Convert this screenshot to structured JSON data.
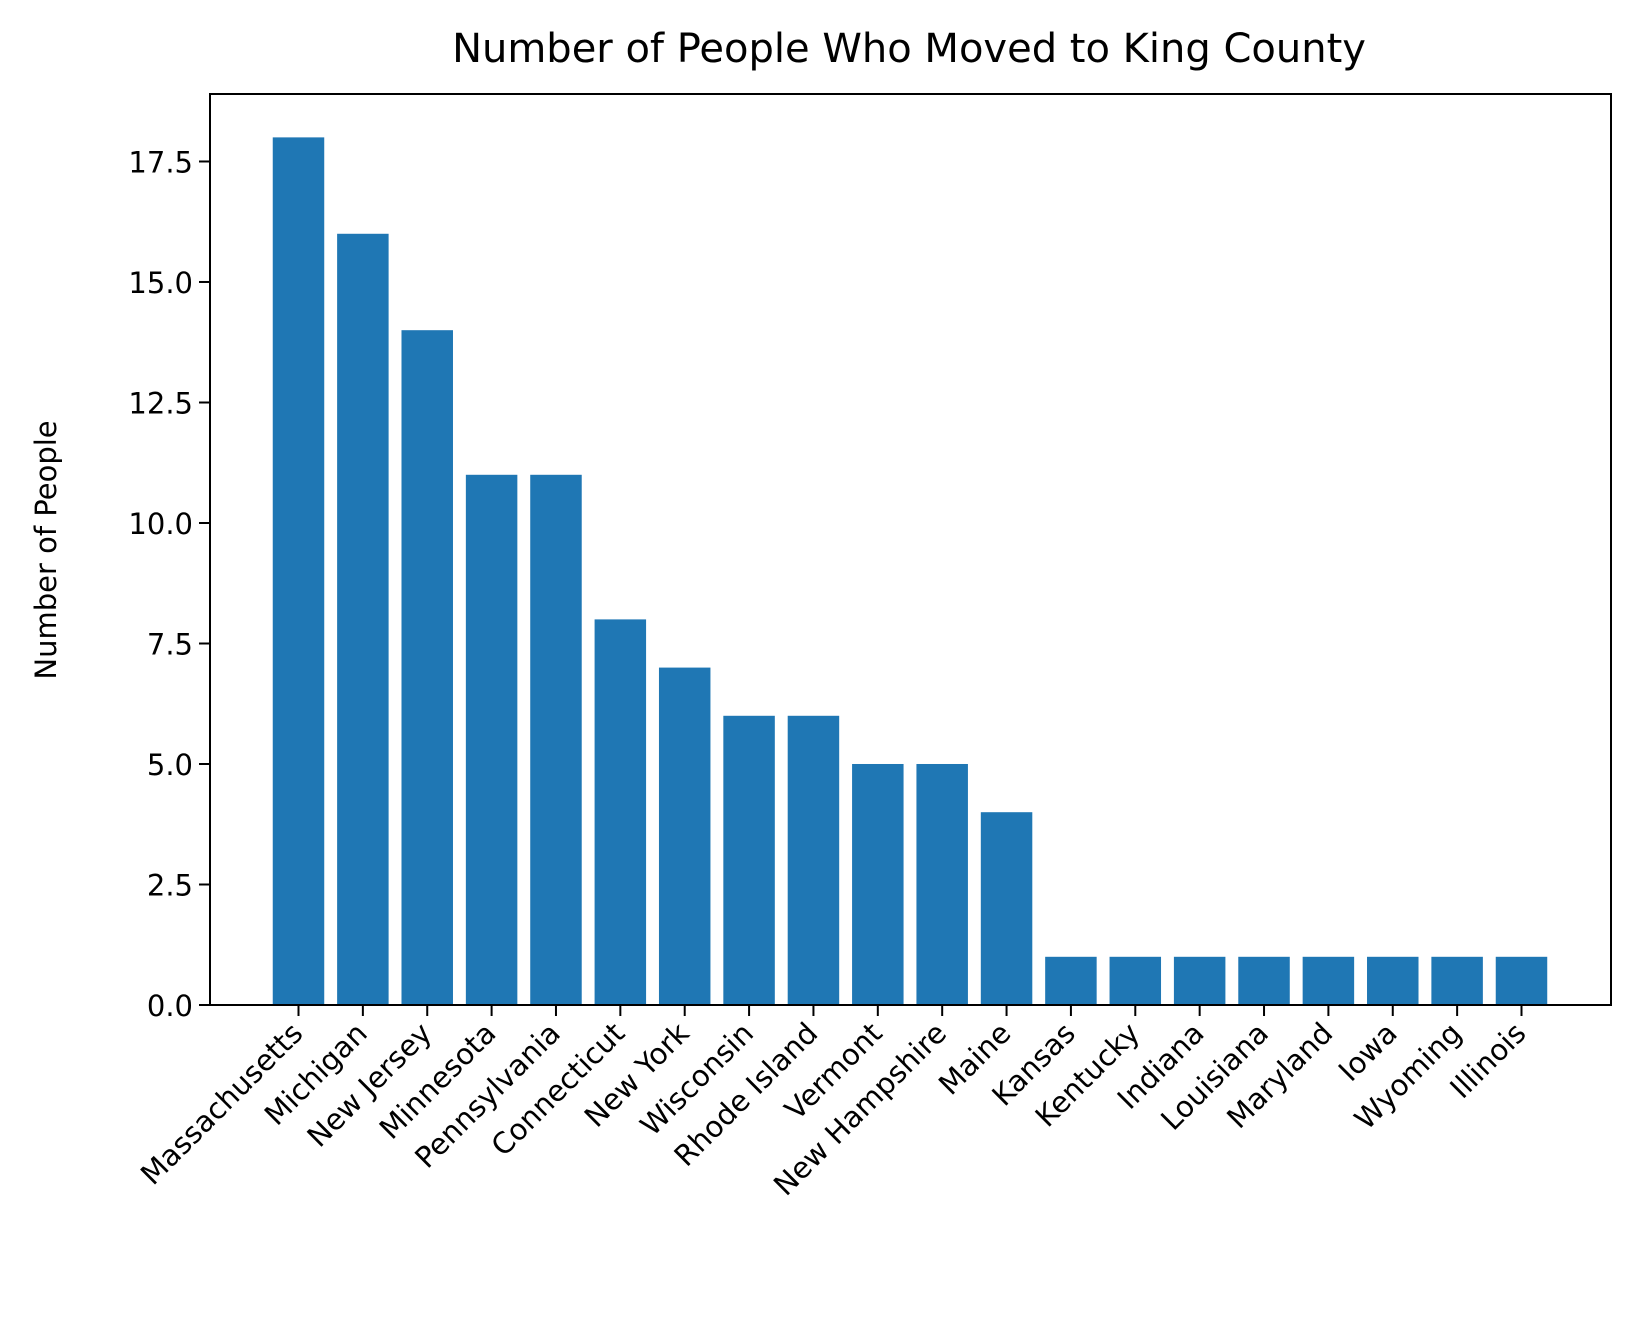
{
  "chart_data": {
    "type": "bar",
    "title": "Number of People Who Moved to King County",
    "xlabel": "",
    "ylabel": "Number of People",
    "categories": [
      "Massachusetts",
      "Michigan",
      "New Jersey",
      "Minnesota",
      "Pennsylvania",
      "Connecticut",
      "New York",
      "Wisconsin",
      "Rhode Island",
      "Vermont",
      "New Hampshire",
      "Maine",
      "Kansas",
      "Kentucky",
      "Indiana",
      "Louisiana",
      "Maryland",
      "Iowa",
      "Wyoming",
      "Illinois"
    ],
    "values": [
      18,
      16,
      14,
      11,
      11,
      8,
      7,
      6,
      6,
      5,
      5,
      4,
      1,
      1,
      1,
      1,
      1,
      1,
      1,
      1
    ],
    "ylim": [
      0,
      18.9
    ],
    "yticks": [
      0.0,
      2.5,
      5.0,
      7.5,
      10.0,
      12.5,
      15.0,
      17.5
    ],
    "ytick_labels": [
      "0.0",
      "2.5",
      "5.0",
      "7.5",
      "10.0",
      "12.5",
      "15.0",
      "17.5"
    ],
    "xtick_rotation": 45,
    "grid": false,
    "legend": "none",
    "bar_color": "#1f77b4"
  }
}
